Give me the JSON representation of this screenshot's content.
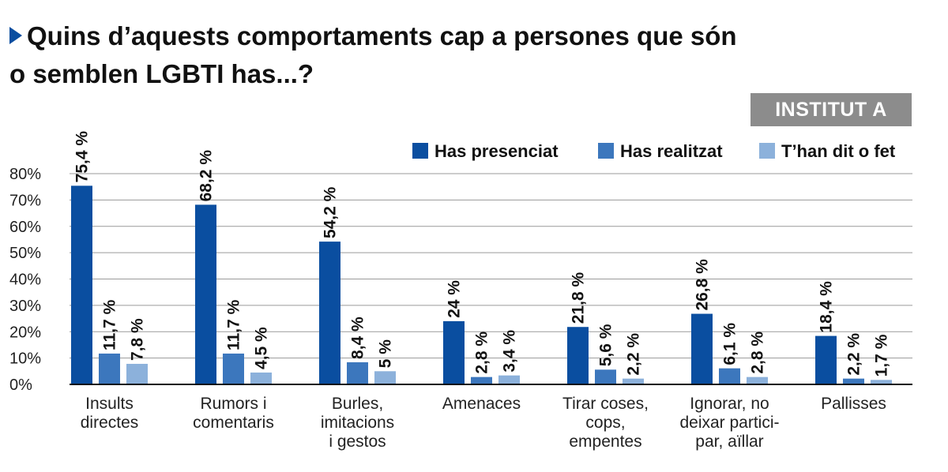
{
  "title_lines": [
    "Quins d’aquests comportaments cap a persones que són",
    "o semblen LGBTI has...?"
  ],
  "badge": "INSTITUT A",
  "colors": {
    "presenciat": "#0a4ea0",
    "realitzat": "#3c77bd",
    "fet": "#8cb1db",
    "grid": "#9a9a9a",
    "axis": "#111111"
  },
  "chart_data": {
    "type": "bar",
    "title": "Quins d’aquests comportaments cap a persones que són o semblen LGBTI has...?",
    "categories": [
      [
        "Insults",
        "directes"
      ],
      [
        "Rumors i",
        "comentaris"
      ],
      [
        "Burles,",
        "imitacions",
        "i gestos"
      ],
      [
        "Amenaces"
      ],
      [
        "Tirar coses,",
        "cops,",
        "empentes"
      ],
      [
        "Ignorar, no",
        "deixar partici-",
        "par, aïllar"
      ],
      [
        "Pallisses"
      ]
    ],
    "series": [
      {
        "name": "Has presenciat",
        "color_key": "presenciat",
        "values": [
          75.4,
          68.2,
          54.2,
          24,
          21.8,
          26.8,
          18.4
        ],
        "labels": [
          "75,4 %",
          "68,2 %",
          "54,2 %",
          "24 %",
          "21,8 %",
          "26,8 %",
          "18,4 %"
        ]
      },
      {
        "name": "Has realitzat",
        "color_key": "realitzat",
        "values": [
          11.7,
          11.7,
          8.4,
          2.8,
          5.6,
          6.1,
          2.2
        ],
        "labels": [
          "11,7 %",
          "11,7 %",
          "8,4 %",
          "2,8 %",
          "5,6 %",
          "6,1 %",
          "2,2 %"
        ]
      },
      {
        "name": "T’han dit o fet",
        "color_key": "fet",
        "values": [
          7.8,
          4.5,
          5,
          3.4,
          2.2,
          2.8,
          1.7
        ],
        "labels": [
          "7,8 %",
          "4,5 %",
          "5 %",
          "3,4 %",
          "2,2 %",
          "2,8 %",
          "1,7 %"
        ]
      }
    ],
    "yticks": [
      0,
      10,
      20,
      30,
      40,
      50,
      60,
      70,
      80
    ],
    "ytick_labels": [
      "0%",
      "10%",
      "20%",
      "30%",
      "40%",
      "50%",
      "60%",
      "70%",
      "80%"
    ],
    "ylim": [
      0,
      80
    ],
    "xlabel": "",
    "ylabel": "",
    "legend_position": "top-right"
  }
}
